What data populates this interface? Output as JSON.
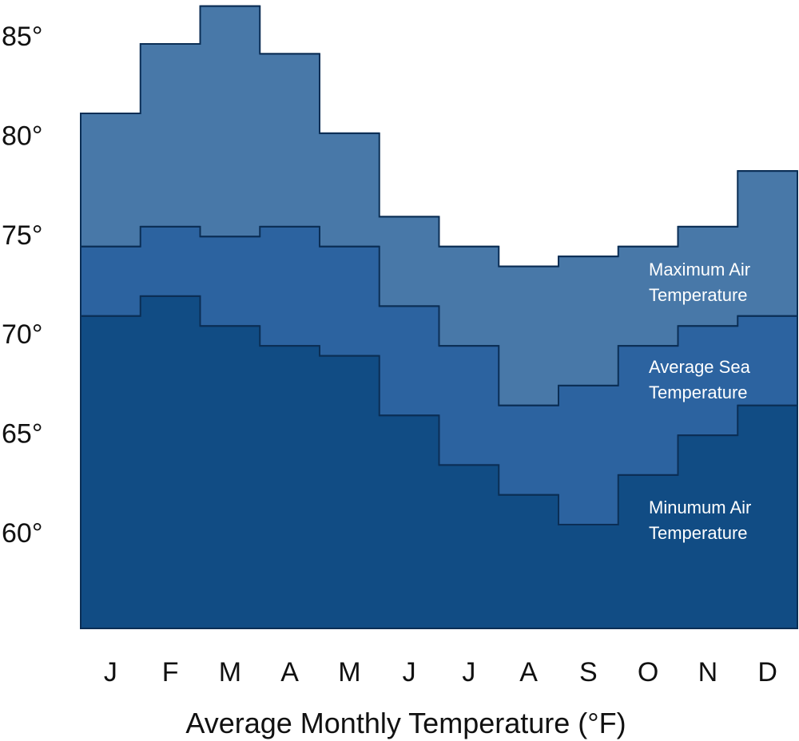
{
  "chart_data": {
    "type": "area",
    "step": true,
    "title": "",
    "xlabel": "Average Monthly Temperature (°F)",
    "ylabel": "",
    "ylim": [
      54,
      86.5
    ],
    "y_ticks": [
      85,
      80,
      75,
      70,
      65,
      60
    ],
    "y_tick_labels": [
      "85°",
      "80°",
      "75°",
      "70°",
      "65°",
      "60°"
    ],
    "categories": [
      "J",
      "F",
      "M",
      "A",
      "M",
      "J",
      "J",
      "A",
      "S",
      "O",
      "N",
      "D"
    ],
    "grid": false,
    "legend": "none",
    "series": [
      {
        "key": "max_air",
        "label_lines": [
          "Maximum Air",
          "Temperature"
        ],
        "color": "#4878A8",
        "values": [
          81.1,
          84.6,
          86.5,
          84.1,
          80.1,
          75.9,
          74.4,
          73.4,
          73.9,
          74.4,
          75.4,
          78.2
        ]
      },
      {
        "key": "avg_sea",
        "label_lines": [
          "Average Sea",
          "Temperature"
        ],
        "color": "#2C63A0",
        "values": [
          74.4,
          75.4,
          74.9,
          75.4,
          74.4,
          71.4,
          69.4,
          66.4,
          67.4,
          69.4,
          70.4,
          70.9
        ]
      },
      {
        "key": "min_air",
        "label_lines": [
          "Minumum Air",
          "Temperature"
        ],
        "color": "#114C84",
        "values": [
          70.9,
          71.9,
          70.4,
          69.4,
          68.9,
          65.9,
          63.4,
          61.9,
          60.4,
          62.9,
          64.9,
          66.4
        ]
      }
    ]
  }
}
